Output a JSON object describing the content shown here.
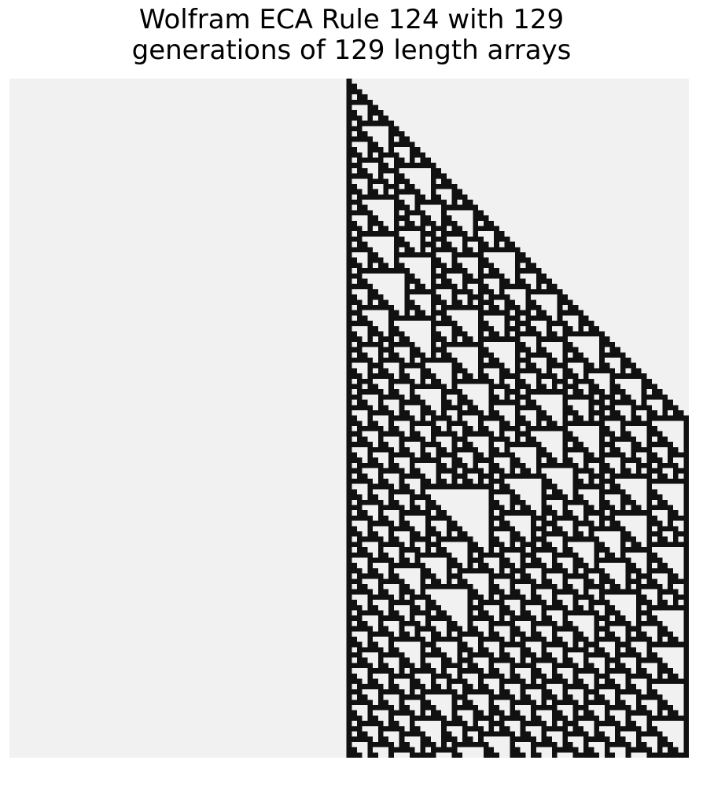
{
  "title": {
    "line1": "Wolfram ECA Rule 124 with 129",
    "line2": "generations of 129 length arrays"
  },
  "automaton": {
    "rule": 124,
    "generations": 129,
    "width": 129,
    "seed": "single live cell at the center of the first row",
    "boundary": "cells beyond the array edges are treated as dead (0)",
    "colors": {
      "live": "#111111",
      "dead": "#f1f1f1"
    }
  }
}
